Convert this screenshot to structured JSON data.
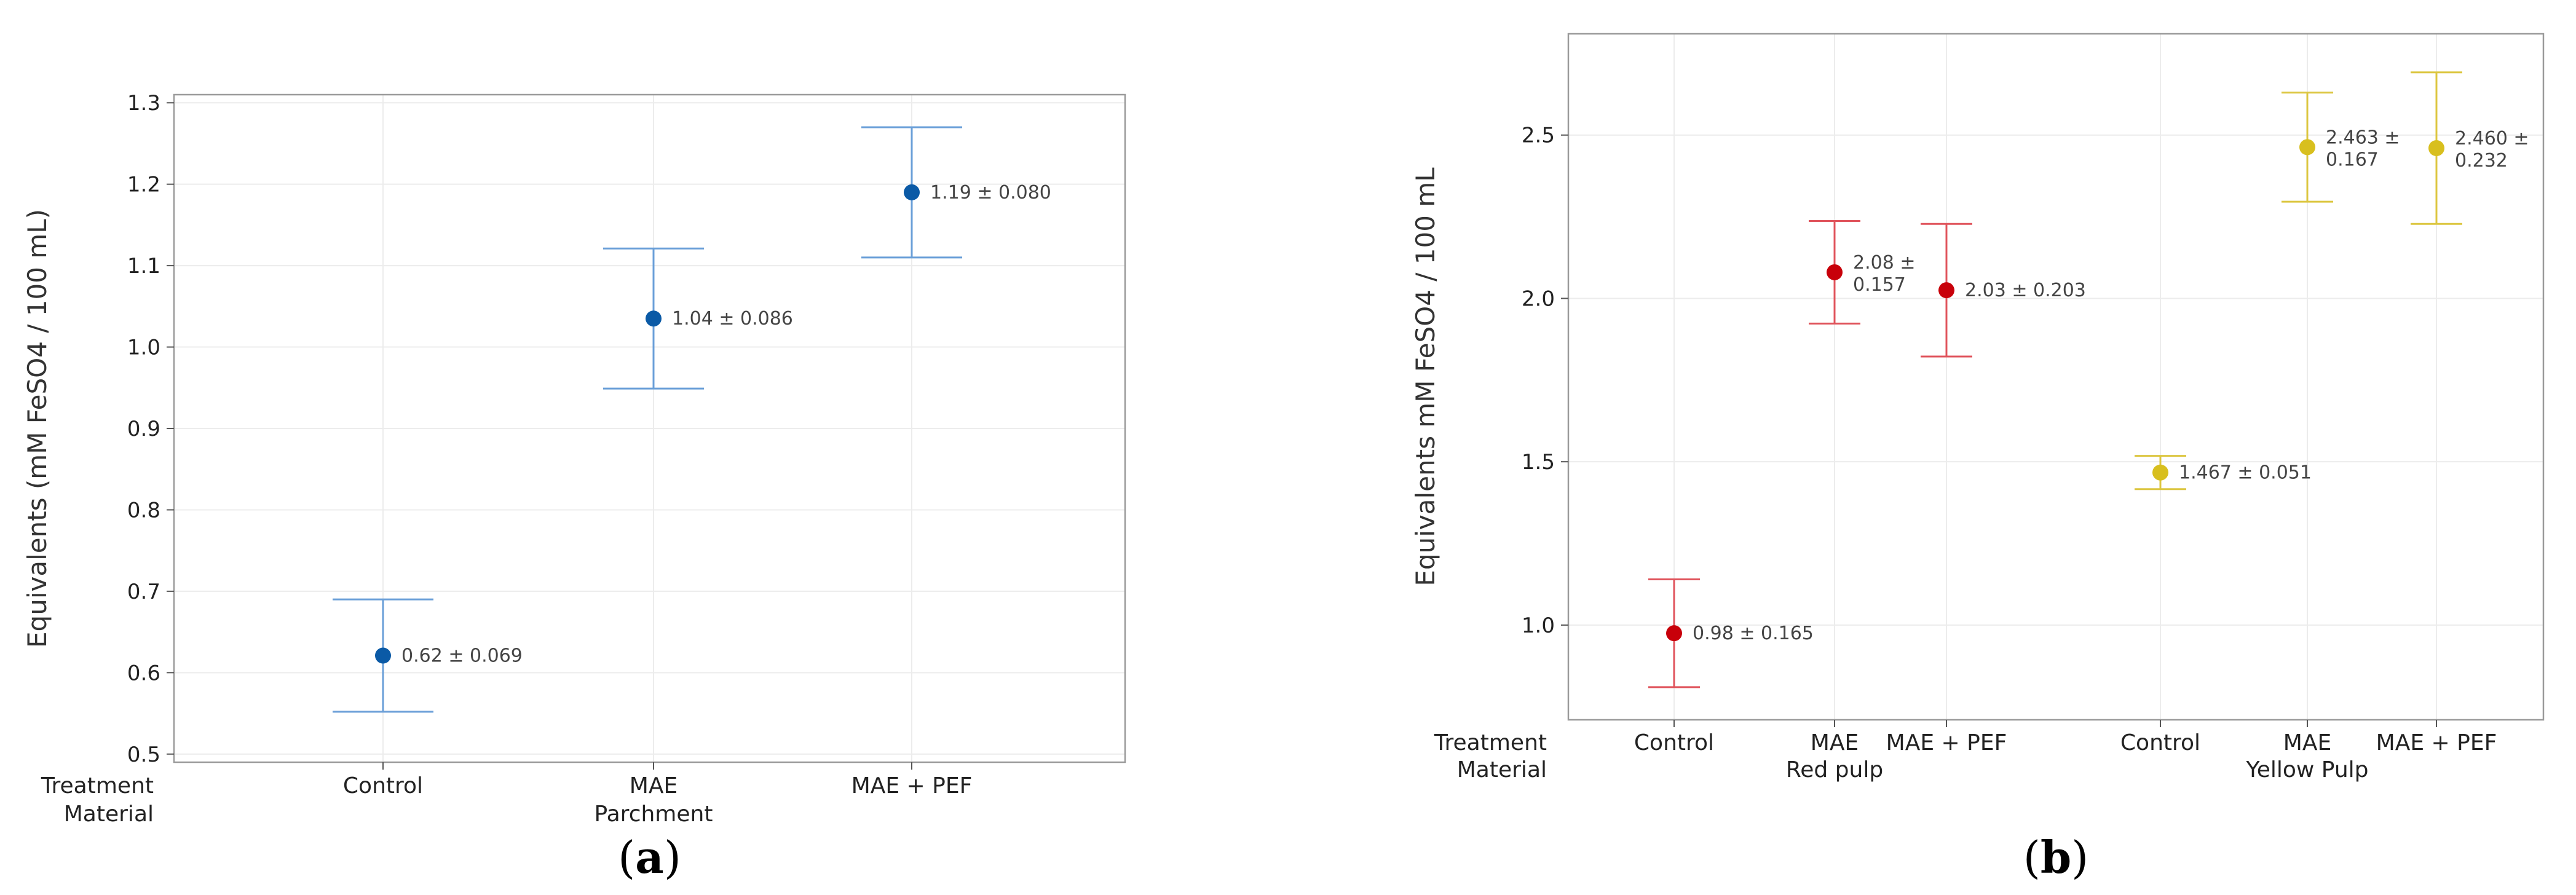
{
  "chart_data": [
    {
      "type": "scatter",
      "panel_label": "a",
      "ylabel": "Equivalents (mM FeSO4 / 100 mL)",
      "ylim": [
        0.49,
        1.31
      ],
      "yticks": [
        "0.5",
        "0.6",
        "0.7",
        "0.8",
        "0.9",
        "1.0",
        "1.1",
        "1.2",
        "1.3"
      ],
      "row_labels": [
        "Treatment",
        "Material"
      ],
      "treatments": [
        "Control",
        "MAE",
        "MAE + PEF"
      ],
      "materials": [
        "Parchment"
      ],
      "grid": true,
      "series": [
        {
          "material": "Parchment",
          "color": "#0b5aa6",
          "errcolor": "#6a9fd8",
          "points": [
            {
              "treatment": "Control",
              "y": 0.621,
              "err": 0.069,
              "label": "0.62 ± 0.069"
            },
            {
              "treatment": "MAE",
              "y": 1.035,
              "err": 0.086,
              "label": "1.04 ± 0.086"
            },
            {
              "treatment": "MAE + PEF",
              "y": 1.19,
              "err": 0.08,
              "label": "1.19 ± 0.080"
            }
          ]
        }
      ]
    },
    {
      "type": "scatter",
      "panel_label": "b",
      "ylabel": "Equivalents mM FeSO4 / 100 mL",
      "ylim": [
        0.71,
        2.81
      ],
      "yticks": [
        "1.0",
        "1.5",
        "2.0",
        "2.5"
      ],
      "row_labels": [
        "Treatment",
        "Material"
      ],
      "treatments": [
        "Control",
        "MAE",
        "MAE + PEF",
        "Control",
        "MAE",
        "MAE + PEF"
      ],
      "materials": [
        "Red pulp",
        "Yellow Pulp"
      ],
      "grid": true,
      "series": [
        {
          "material": "Red pulp",
          "color": "#c8000a",
          "errcolor": "#e0545c",
          "points": [
            {
              "treatment": "Control",
              "y": 0.975,
              "err": 0.165,
              "label": "0.98 ± 0.165"
            },
            {
              "treatment": "MAE",
              "y": 2.08,
              "err": 0.157,
              "label": "2.08 ±\n0.157"
            },
            {
              "treatment": "MAE + PEF",
              "y": 2.025,
              "err": 0.203,
              "label": "2.03 ± 0.203"
            }
          ]
        },
        {
          "material": "Yellow Pulp",
          "color": "#d8bf1e",
          "errcolor": "#dcc640",
          "points": [
            {
              "treatment": "Control",
              "y": 1.467,
              "err": 0.051,
              "label": "1.467 ± 0.051"
            },
            {
              "treatment": "MAE",
              "y": 2.463,
              "err": 0.167,
              "label": "2.463 ±\n0.167"
            },
            {
              "treatment": "MAE + PEF",
              "y": 2.46,
              "err": 0.232,
              "label": "2.460 ±\n0.232"
            }
          ]
        }
      ]
    }
  ]
}
